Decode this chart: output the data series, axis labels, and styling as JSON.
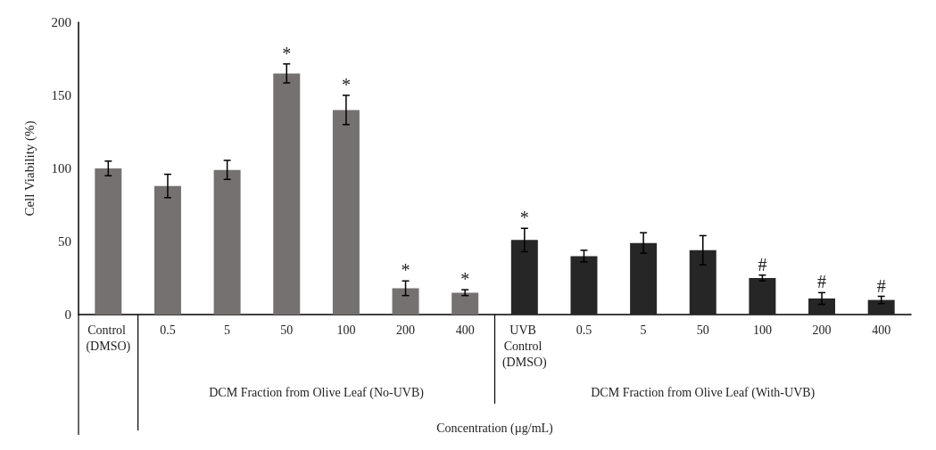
{
  "chart_data": {
    "type": "bar",
    "ylabel": "Cell Viability (%)",
    "xlabel": "Concentration (µg/mL)",
    "categories": [
      "Control (DMSO)",
      "0.5",
      "5",
      "50",
      "100",
      "200",
      "400",
      "UVB Control (DMSO)",
      "0.5",
      "5",
      "50",
      "100",
      "200",
      "400"
    ],
    "values": [
      100,
      88,
      99,
      165,
      140,
      18,
      15,
      51,
      40,
      49,
      44,
      25,
      11,
      10
    ],
    "errors": [
      5,
      8,
      6.5,
      6.5,
      10,
      5,
      2,
      8,
      4,
      7,
      10,
      2,
      4,
      2.5
    ],
    "value_labels": [
      null,
      null,
      null,
      "*",
      "*",
      "*",
      "*",
      "*",
      null,
      null,
      null,
      "#",
      "#",
      "#"
    ],
    "colors": [
      "#767171",
      "#767171",
      "#767171",
      "#767171",
      "#767171",
      "#767171",
      "#767171",
      "#262626",
      "#262626",
      "#262626",
      "#262626",
      "#262626",
      "#262626",
      "#262626"
    ],
    "ylim": [
      0,
      200
    ],
    "yticks": [
      0,
      50,
      100,
      150,
      200
    ],
    "grid": false,
    "annotations": [
      "DCM Fraction from Olive Leaf (No-UVB)",
      "DCM Fraction from Olive Leaf (With-UVB)"
    ]
  }
}
